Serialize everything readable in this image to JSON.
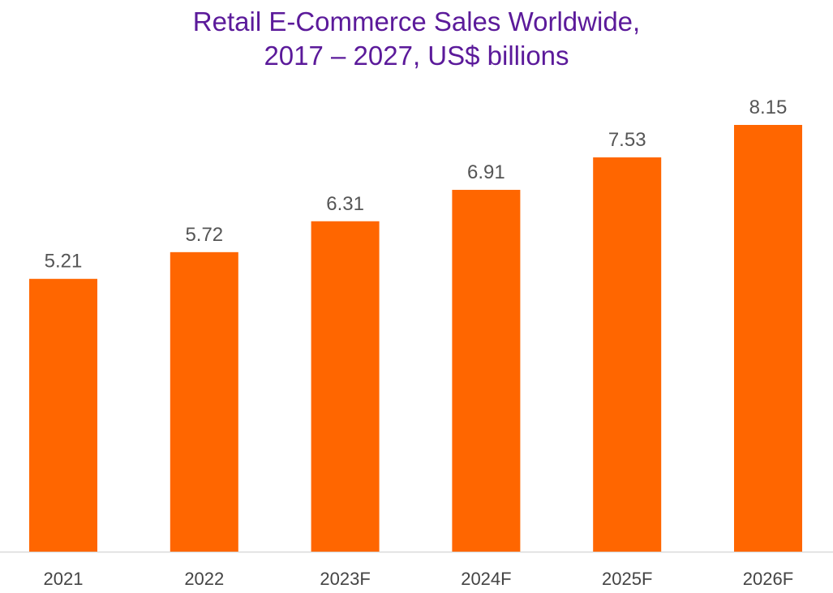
{
  "chart_data": {
    "type": "bar",
    "title_line1": "Retail E-Commerce Sales Worldwide,",
    "title_line2": "2017 – 2027, US$ billions",
    "categories": [
      "2021",
      "2022",
      "2023F",
      "2024F",
      "2025F",
      "2026F"
    ],
    "values": [
      5.21,
      5.72,
      6.31,
      6.91,
      7.53,
      8.15
    ],
    "data_labels": [
      "5.21",
      "5.72",
      "6.31",
      "6.91",
      "7.53",
      "8.15"
    ],
    "ylim": [
      0,
      8.3
    ],
    "grid": false,
    "legend": "none",
    "bar_color": "#ff6600",
    "title_color": "#5b1a9a",
    "axis_color": "#d9d9d9"
  }
}
